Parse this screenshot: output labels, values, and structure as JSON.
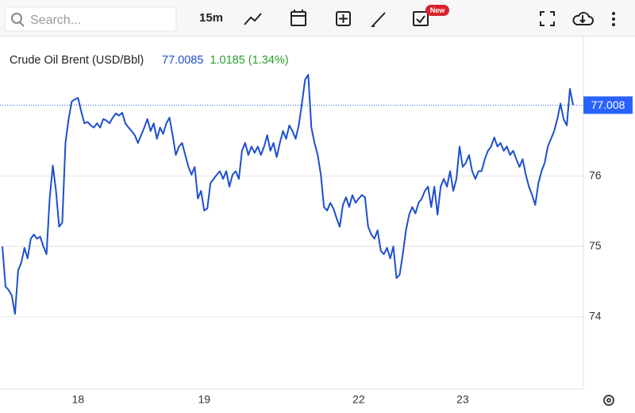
{
  "toolbar": {
    "search_placeholder": "Search...",
    "interval": "15m",
    "badge": "New"
  },
  "chart_data": {
    "type": "line",
    "title": "Crude Oil Brent (USD/Bbl)",
    "price": "77.0085",
    "change": "1.0185 (1.34%)",
    "categories": [
      null,
      null,
      null,
      null,
      null,
      null,
      null,
      null,
      null,
      null,
      null,
      null,
      null,
      null,
      null,
      null,
      null,
      null,
      null,
      null,
      null,
      null,
      null,
      null,
      "18",
      null,
      null,
      null,
      null,
      null,
      null,
      null,
      null,
      null,
      null,
      null,
      null,
      null,
      null,
      null,
      null,
      null,
      null,
      null,
      null,
      null,
      null,
      null,
      null,
      null,
      null,
      null,
      null,
      null,
      null,
      null,
      null,
      null,
      null,
      null,
      null,
      null,
      null,
      null,
      "19",
      null,
      null,
      null,
      null,
      null,
      null,
      null,
      null,
      null,
      null,
      null,
      null,
      null,
      null,
      null,
      null,
      null,
      null,
      null,
      null,
      null,
      null,
      null,
      null,
      null,
      null,
      null,
      null,
      null,
      null,
      null,
      null,
      null,
      null,
      null,
      null,
      null,
      null,
      null,
      null,
      null,
      null,
      null,
      null,
      null,
      null,
      null,
      null,
      "22",
      null,
      null,
      null,
      null,
      null,
      null,
      null,
      null,
      null,
      null,
      null,
      null,
      null,
      null,
      null,
      null,
      null,
      null,
      null,
      null,
      null,
      null,
      null,
      null,
      null,
      null,
      null,
      null,
      null,
      null,
      null,
      null,
      "23",
      null,
      null,
      null,
      null,
      null,
      null,
      null,
      null,
      null,
      null,
      null,
      null,
      null,
      null,
      null,
      null,
      null,
      null,
      null,
      null,
      null,
      null,
      null,
      null,
      null,
      null,
      null,
      null,
      null,
      null,
      null,
      null,
      null,
      null,
      null
    ],
    "series": [
      {
        "name": "Crude Oil Brent",
        "color": "#1d4fcf",
        "values": [
          75.0,
          74.43,
          74.38,
          74.3,
          74.04,
          74.66,
          74.77,
          74.98,
          74.83,
          75.11,
          75.17,
          75.11,
          75.14,
          75.0,
          74.89,
          75.68,
          76.15,
          75.79,
          75.28,
          75.34,
          76.47,
          76.81,
          77.06,
          77.09,
          77.11,
          76.92,
          76.75,
          76.77,
          76.72,
          76.69,
          76.75,
          76.69,
          76.81,
          76.79,
          76.75,
          76.83,
          76.89,
          76.86,
          76.9,
          76.75,
          76.69,
          76.64,
          76.58,
          76.47,
          76.58,
          76.69,
          76.81,
          76.64,
          76.75,
          76.53,
          76.69,
          76.6,
          76.75,
          76.83,
          76.58,
          76.3,
          76.42,
          76.47,
          76.3,
          76.13,
          76.02,
          76.13,
          75.68,
          75.79,
          75.51,
          75.54,
          75.9,
          75.96,
          76.02,
          76.07,
          75.96,
          76.07,
          75.85,
          76.02,
          76.07,
          75.96,
          76.36,
          76.47,
          76.3,
          76.42,
          76.33,
          76.42,
          76.3,
          76.42,
          76.58,
          76.36,
          76.47,
          76.27,
          76.47,
          76.64,
          76.53,
          76.72,
          76.64,
          76.53,
          76.72,
          77.03,
          77.37,
          77.44,
          76.69,
          76.47,
          76.3,
          76.02,
          75.56,
          75.51,
          75.62,
          75.54,
          75.4,
          75.28,
          75.59,
          75.7,
          75.56,
          75.73,
          75.62,
          75.68,
          75.73,
          75.7,
          75.28,
          75.17,
          75.11,
          75.23,
          74.94,
          74.89,
          74.98,
          74.83,
          75.0,
          74.55,
          74.6,
          74.89,
          75.23,
          75.45,
          75.56,
          75.47,
          75.62,
          75.68,
          75.79,
          75.85,
          75.56,
          75.85,
          75.45,
          75.85,
          75.96,
          75.85,
          76.07,
          75.79,
          75.96,
          76.42,
          76.13,
          76.19,
          76.3,
          76.07,
          75.96,
          76.07,
          76.07,
          76.24,
          76.36,
          76.42,
          76.55,
          76.42,
          76.47,
          76.36,
          76.42,
          76.3,
          76.36,
          76.24,
          76.13,
          76.24,
          76.02,
          75.85,
          75.73,
          75.59,
          75.9,
          76.07,
          76.19,
          76.42,
          76.53,
          76.64,
          76.81,
          77.03,
          76.81,
          76.72,
          77.24,
          77.01
        ]
      }
    ],
    "last_price": 77.008,
    "last_price_label": "77.008",
    "last_price_color": "#2962ff",
    "ylim": [
      73.0,
      78.0
    ],
    "yticks": [
      74,
      75,
      76
    ],
    "grid": true
  }
}
